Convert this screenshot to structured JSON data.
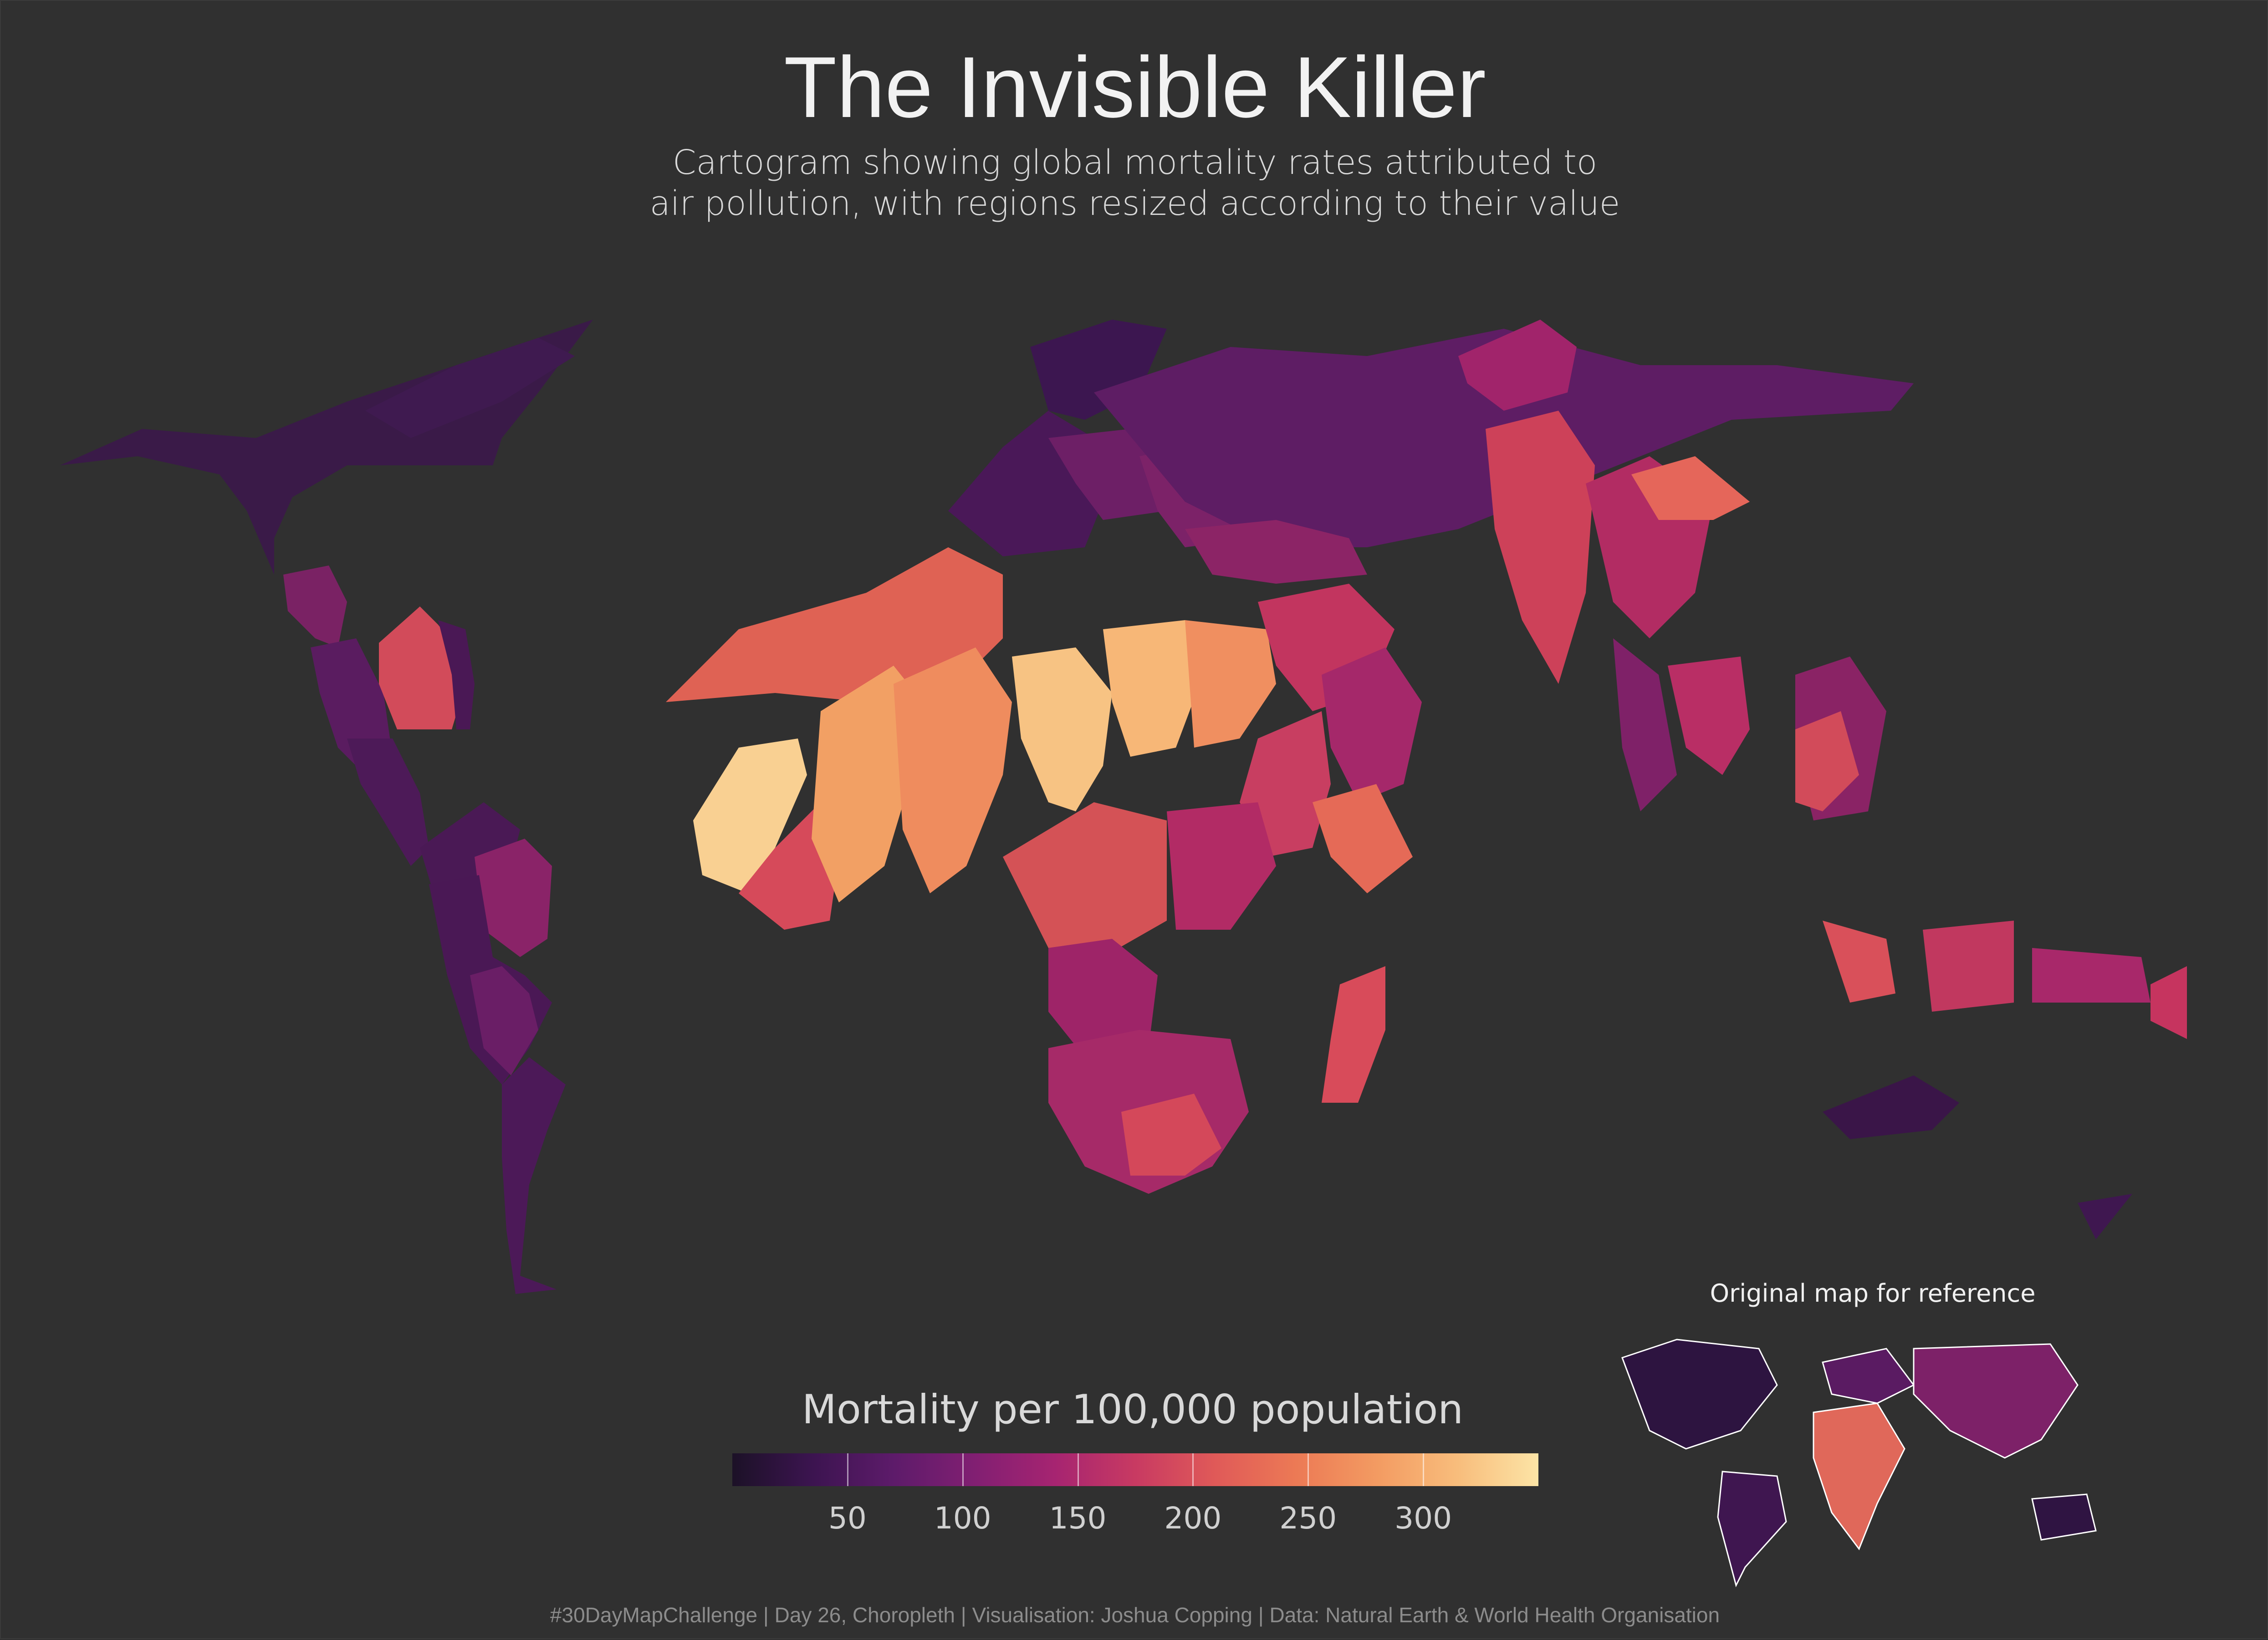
{
  "header": {
    "title": "The Invisible Killer",
    "subtitle_line1": "Cartogram showing global mortality rates attributed to",
    "subtitle_line2": "air pollution, with regions resized according to their value"
  },
  "legend": {
    "title": "Mortality per 100,000 population",
    "ticks": [
      "50",
      "100",
      "150",
      "200",
      "250",
      "300"
    ],
    "tick_values": [
      50,
      100,
      150,
      200,
      250,
      300
    ],
    "range": [
      0,
      350
    ],
    "palette": [
      "#1c1127",
      "#3c1450",
      "#5d1b6a",
      "#811f72",
      "#a62471",
      "#c83a62",
      "#e05a58",
      "#ec7a55",
      "#f39b62",
      "#f8bd7c",
      "#fce4a6"
    ]
  },
  "inset": {
    "title": "Original map for reference"
  },
  "caption": "#30DayMapChallenge | Day 26, Choropleth | Visualisation: Joshua Copping | Data: Natural Earth & World Health Organisation",
  "colors": {
    "background": "#303030",
    "title_text": "#f2f2f2",
    "caption_text": "#8c8c8c"
  }
}
